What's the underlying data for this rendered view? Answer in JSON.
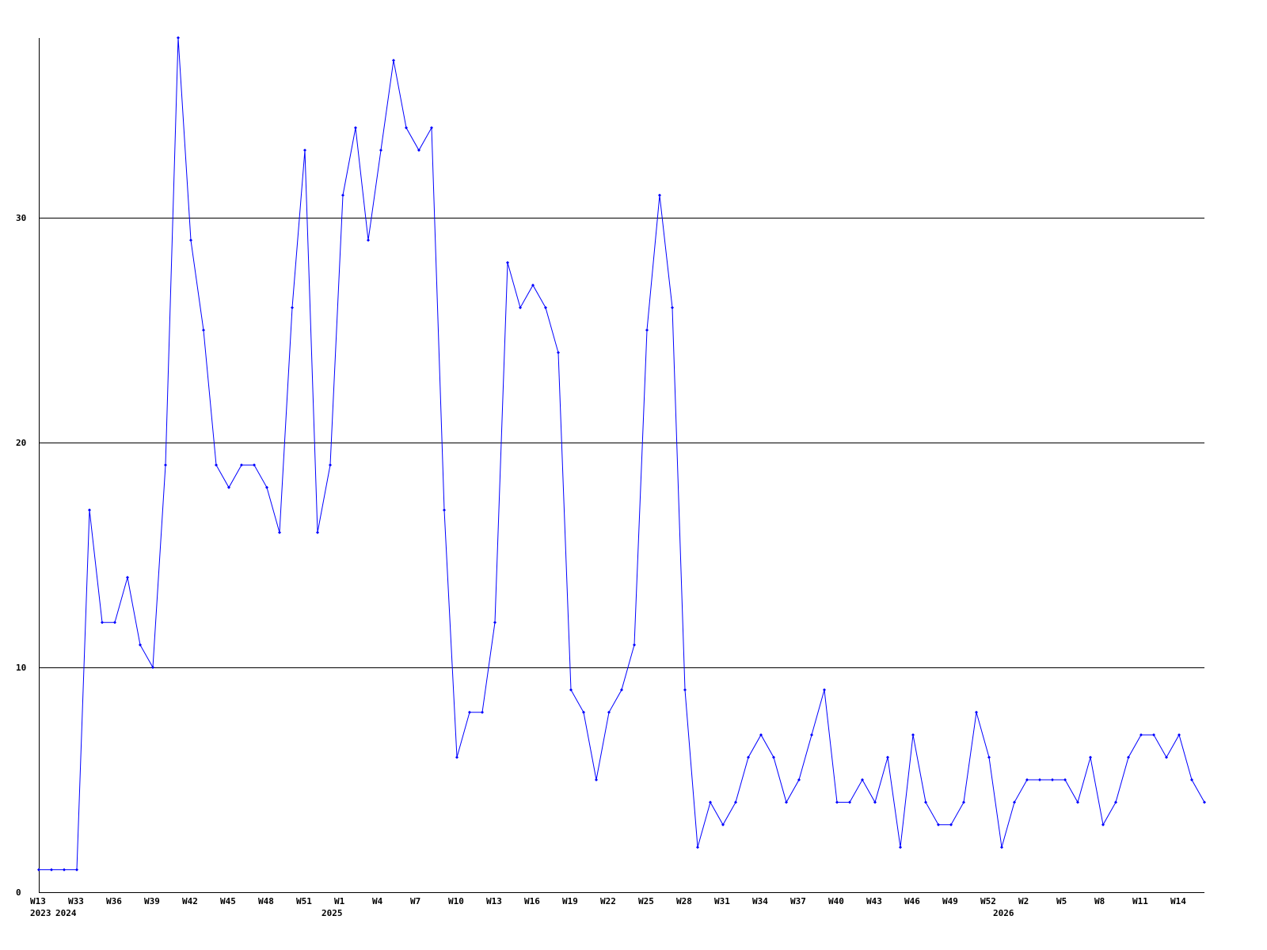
{
  "chart_data": {
    "type": "line",
    "title": "",
    "xlabel": "",
    "ylabel": "",
    "ylim": [
      0,
      38
    ],
    "grid": "horizontal at y ticks",
    "line_color": "#0000ff",
    "axis_color": "#000000",
    "y_ticks": [
      0,
      10,
      20,
      30
    ],
    "x_ticks": [
      {
        "index": 0,
        "label": "W13"
      },
      {
        "index": 3,
        "label": "W33"
      },
      {
        "index": 6,
        "label": "W36"
      },
      {
        "index": 9,
        "label": "W39"
      },
      {
        "index": 12,
        "label": "W42"
      },
      {
        "index": 15,
        "label": "W45"
      },
      {
        "index": 18,
        "label": "W48"
      },
      {
        "index": 21,
        "label": "W51"
      },
      {
        "index": 24,
        "label": "W1"
      },
      {
        "index": 27,
        "label": "W4"
      },
      {
        "index": 30,
        "label": "W7"
      },
      {
        "index": 33,
        "label": "W10"
      },
      {
        "index": 36,
        "label": "W13"
      },
      {
        "index": 39,
        "label": "W16"
      },
      {
        "index": 42,
        "label": "W19"
      },
      {
        "index": 45,
        "label": "W22"
      },
      {
        "index": 48,
        "label": "W25"
      },
      {
        "index": 51,
        "label": "W28"
      },
      {
        "index": 54,
        "label": "W31"
      },
      {
        "index": 57,
        "label": "W34"
      },
      {
        "index": 60,
        "label": "W37"
      },
      {
        "index": 63,
        "label": "W40"
      },
      {
        "index": 66,
        "label": "W43"
      },
      {
        "index": 69,
        "label": "W46"
      },
      {
        "index": 72,
        "label": "W49"
      },
      {
        "index": 75,
        "label": "W52"
      },
      {
        "index": 78,
        "label": "W2"
      },
      {
        "index": 81,
        "label": "W5"
      },
      {
        "index": 84,
        "label": "W8"
      },
      {
        "index": 87,
        "label": "W11"
      },
      {
        "index": 90,
        "label": "W14"
      }
    ],
    "year_labels": [
      {
        "index": 0,
        "label": "2023"
      },
      {
        "index": 2,
        "label": "2024"
      },
      {
        "index": 23,
        "label": "2025"
      },
      {
        "index": 76,
        "label": "2026"
      }
    ],
    "series": [
      {
        "values": [
          1,
          1,
          1,
          1,
          17,
          12,
          12,
          14,
          11,
          10,
          19,
          38,
          29,
          25,
          19,
          18,
          19,
          19,
          18,
          16,
          26,
          33,
          16,
          19,
          31,
          34,
          29,
          33,
          37,
          34,
          33,
          34,
          17,
          6,
          8,
          8,
          12,
          28,
          26,
          27,
          26,
          24,
          9,
          8,
          5,
          8,
          9,
          11,
          25,
          31,
          26,
          9,
          2,
          4,
          3,
          4,
          6,
          7,
          6,
          4,
          5,
          7,
          9,
          4,
          4,
          5,
          4,
          6,
          2,
          7,
          4,
          3,
          3,
          4,
          8,
          6,
          2,
          4,
          5,
          5,
          5,
          5,
          4,
          6,
          3,
          4,
          6,
          7,
          7,
          6,
          7,
          5,
          4
        ]
      }
    ]
  }
}
